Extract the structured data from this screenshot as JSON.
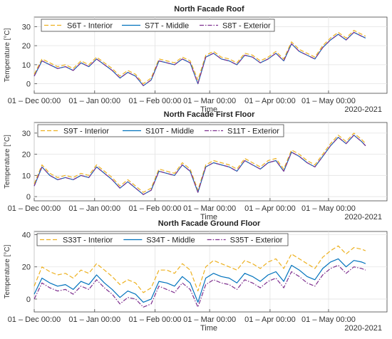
{
  "figure": {
    "year_label": "2020-2021",
    "x_label": "Time",
    "y_label": "Temperature [°C]"
  },
  "chart_data": [
    {
      "type": "line",
      "title": "North Facade Roof",
      "xlabel": "Time",
      "ylabel": "Temperature [°C]",
      "xlim": [
        "2020-12-01",
        "2021-05-31"
      ],
      "ylim": [
        -5,
        35
      ],
      "yticks": [
        0,
        10,
        20,
        30
      ],
      "xticks": [
        "01 – Dec 00:00",
        "01 – Jan 00:00",
        "01 – Feb 00:00",
        "01 – Mar 00:00",
        "01 – Apr 00:00",
        "01 – May 00:00"
      ],
      "grid": true,
      "legend": "top-left",
      "dates": [
        "2020-12-01",
        "2020-12-05",
        "2020-12-09",
        "2020-12-13",
        "2020-12-17",
        "2020-12-21",
        "2020-12-25",
        "2020-12-29",
        "2021-01-02",
        "2021-01-06",
        "2021-01-10",
        "2021-01-14",
        "2021-01-18",
        "2021-01-22",
        "2021-01-26",
        "2021-01-30",
        "2021-02-03",
        "2021-02-07",
        "2021-02-11",
        "2021-02-15",
        "2021-02-19",
        "2021-02-23",
        "2021-02-27",
        "2021-03-03",
        "2021-03-07",
        "2021-03-11",
        "2021-03-15",
        "2021-03-19",
        "2021-03-23",
        "2021-03-27",
        "2021-03-31",
        "2021-04-04",
        "2021-04-08",
        "2021-04-12",
        "2021-04-16",
        "2021-04-20",
        "2021-04-24",
        "2021-04-28",
        "2021-05-02",
        "2021-05-06",
        "2021-05-10",
        "2021-05-14",
        "2021-05-18",
        "2021-05-20"
      ],
      "series": [
        {
          "name": "S6T - Interior",
          "color": "#EDB120",
          "style": "dashed",
          "values": [
            5,
            13,
            11,
            9,
            10,
            8,
            12,
            10,
            14,
            11,
            8,
            4,
            7,
            5,
            0,
            3,
            13,
            12,
            11,
            14,
            12,
            2,
            15,
            17,
            14,
            13,
            11,
            16,
            15,
            12,
            14,
            17,
            13,
            22,
            18,
            16,
            14,
            20,
            24,
            27,
            24,
            28,
            26,
            25
          ]
        },
        {
          "name": "S7T - Middle",
          "color": "#0072BD",
          "style": "solid",
          "values": [
            4,
            12,
            10,
            8,
            9,
            7,
            11,
            9,
            13,
            10,
            7,
            3,
            6,
            4,
            -1,
            2,
            12,
            11,
            10,
            13,
            11,
            0,
            14,
            16,
            13,
            12,
            10,
            15,
            14,
            11,
            13,
            16,
            12,
            21,
            17,
            15,
            13,
            19,
            23,
            26,
            23,
            27,
            25,
            24
          ]
        },
        {
          "name": "S8T - Exterior",
          "color": "#7E2F8E",
          "style": "dashdot",
          "values": [
            4,
            12,
            10,
            8,
            9,
            7,
            11,
            9,
            13,
            10,
            7,
            3,
            6,
            4,
            -1,
            2,
            12,
            11,
            10,
            13,
            11,
            0,
            14,
            16,
            13,
            12,
            10,
            15,
            14,
            11,
            13,
            16,
            12,
            21,
            17,
            15,
            13,
            19,
            23,
            26,
            23,
            27,
            25,
            24
          ]
        }
      ]
    },
    {
      "type": "line",
      "title": "North Facade First Floor",
      "xlabel": "Time",
      "ylabel": "Temperature [°C]",
      "xlim": [
        "2020-12-01",
        "2021-05-31"
      ],
      "ylim": [
        -2,
        35
      ],
      "yticks": [
        0,
        10,
        20,
        30
      ],
      "xticks": [
        "01 – Dec 00:00",
        "01 – Jan 00:00",
        "01 – Feb 00:00",
        "01 – Mar 00:00",
        "01 – Apr 00:00",
        "01 – May 00:00"
      ],
      "grid": true,
      "legend": "top",
      "dates": [
        "2020-12-01",
        "2020-12-05",
        "2020-12-09",
        "2020-12-13",
        "2020-12-17",
        "2020-12-21",
        "2020-12-25",
        "2020-12-29",
        "2021-01-02",
        "2021-01-06",
        "2021-01-10",
        "2021-01-14",
        "2021-01-18",
        "2021-01-22",
        "2021-01-26",
        "2021-01-30",
        "2021-02-03",
        "2021-02-07",
        "2021-02-11",
        "2021-02-15",
        "2021-02-19",
        "2021-02-23",
        "2021-02-27",
        "2021-03-03",
        "2021-03-07",
        "2021-03-11",
        "2021-03-15",
        "2021-03-19",
        "2021-03-23",
        "2021-03-27",
        "2021-03-31",
        "2021-04-04",
        "2021-04-08",
        "2021-04-12",
        "2021-04-16",
        "2021-04-20",
        "2021-04-24",
        "2021-04-28",
        "2021-05-02",
        "2021-05-06",
        "2021-05-10",
        "2021-05-14",
        "2021-05-18",
        "2021-05-20"
      ],
      "series": [
        {
          "name": "S9T - Interior",
          "color": "#EDB120",
          "style": "dashed",
          "values": [
            6,
            15,
            11,
            9,
            10,
            9,
            11,
            10,
            15,
            12,
            9,
            5,
            8,
            5,
            2,
            4,
            13,
            12,
            11,
            16,
            13,
            3,
            15,
            17,
            16,
            15,
            13,
            18,
            16,
            14,
            17,
            18,
            13,
            22,
            20,
            17,
            15,
            20,
            25,
            29,
            26,
            30,
            27,
            25
          ]
        },
        {
          "name": "S10T - Middle",
          "color": "#0072BD",
          "style": "solid",
          "values": [
            5,
            14,
            10,
            8,
            9,
            8,
            10,
            9,
            14,
            11,
            8,
            4,
            7,
            4,
            1,
            3,
            12,
            11,
            10,
            15,
            12,
            2,
            14,
            16,
            15,
            14,
            12,
            17,
            15,
            13,
            16,
            17,
            12,
            21,
            19,
            16,
            14,
            19,
            24,
            28,
            25,
            29,
            26,
            24
          ]
        },
        {
          "name": "S11T - Exterior",
          "color": "#7E2F8E",
          "style": "dashdot",
          "values": [
            5,
            14,
            10,
            8,
            9,
            8,
            10,
            9,
            14,
            11,
            8,
            4,
            7,
            4,
            1,
            3,
            12,
            11,
            10,
            15,
            12,
            2,
            14,
            16,
            15,
            14,
            12,
            17,
            15,
            13,
            16,
            17,
            12,
            21,
            19,
            16,
            14,
            19,
            24,
            28,
            25,
            29,
            26,
            24
          ]
        }
      ]
    },
    {
      "type": "line",
      "title": "North Facade Ground Floor",
      "xlabel": "Time",
      "ylabel": "Temperature [°C]",
      "xlim": [
        "2020-12-01",
        "2021-05-31"
      ],
      "ylim": [
        -8,
        42
      ],
      "yticks": [
        0,
        20,
        40
      ],
      "xticks": [
        "01 – Dec 00:00",
        "01 – Jan 00:00",
        "01 – Feb 00:00",
        "01 – Mar 00:00",
        "01 – Apr 00:00",
        "01 – May 00:00"
      ],
      "grid": true,
      "legend": "top",
      "dates": [
        "2020-12-01",
        "2020-12-05",
        "2020-12-09",
        "2020-12-13",
        "2020-12-17",
        "2020-12-21",
        "2020-12-25",
        "2020-12-29",
        "2021-01-02",
        "2021-01-06",
        "2021-01-10",
        "2021-01-14",
        "2021-01-18",
        "2021-01-22",
        "2021-01-26",
        "2021-01-30",
        "2021-02-03",
        "2021-02-07",
        "2021-02-11",
        "2021-02-15",
        "2021-02-19",
        "2021-02-23",
        "2021-02-27",
        "2021-03-03",
        "2021-03-07",
        "2021-03-11",
        "2021-03-15",
        "2021-03-19",
        "2021-03-23",
        "2021-03-27",
        "2021-03-31",
        "2021-04-04",
        "2021-04-08",
        "2021-04-12",
        "2021-04-16",
        "2021-04-20",
        "2021-04-24",
        "2021-04-28",
        "2021-05-02",
        "2021-05-06",
        "2021-05-10",
        "2021-05-14",
        "2021-05-18",
        "2021-05-20"
      ],
      "series": [
        {
          "name": "S33T - Interior",
          "color": "#EDB120",
          "style": "dashed",
          "values": [
            8,
            20,
            17,
            15,
            16,
            13,
            18,
            16,
            22,
            18,
            14,
            9,
            12,
            10,
            4,
            7,
            18,
            18,
            16,
            22,
            18,
            5,
            20,
            24,
            22,
            20,
            18,
            24,
            22,
            19,
            23,
            25,
            19,
            28,
            25,
            22,
            19,
            26,
            30,
            33,
            28,
            32,
            31,
            30
          ]
        },
        {
          "name": "S34T - Middle",
          "color": "#0072BD",
          "style": "solid",
          "values": [
            3,
            13,
            10,
            8,
            9,
            6,
            11,
            9,
            15,
            10,
            6,
            1,
            5,
            3,
            -2,
            0,
            11,
            10,
            8,
            14,
            10,
            -2,
            13,
            16,
            14,
            13,
            10,
            16,
            14,
            11,
            15,
            17,
            11,
            21,
            18,
            14,
            12,
            19,
            23,
            25,
            20,
            24,
            23,
            22
          ]
        },
        {
          "name": "S35T - Exterior",
          "color": "#7E2F8E",
          "style": "dashdot",
          "values": [
            0,
            10,
            7,
            5,
            6,
            3,
            8,
            6,
            12,
            7,
            3,
            -3,
            1,
            0,
            -5,
            -3,
            8,
            6,
            4,
            10,
            6,
            -5,
            9,
            12,
            10,
            9,
            6,
            12,
            10,
            7,
            11,
            13,
            7,
            17,
            14,
            10,
            8,
            15,
            19,
            21,
            16,
            20,
            19,
            18
          ]
        }
      ]
    }
  ]
}
